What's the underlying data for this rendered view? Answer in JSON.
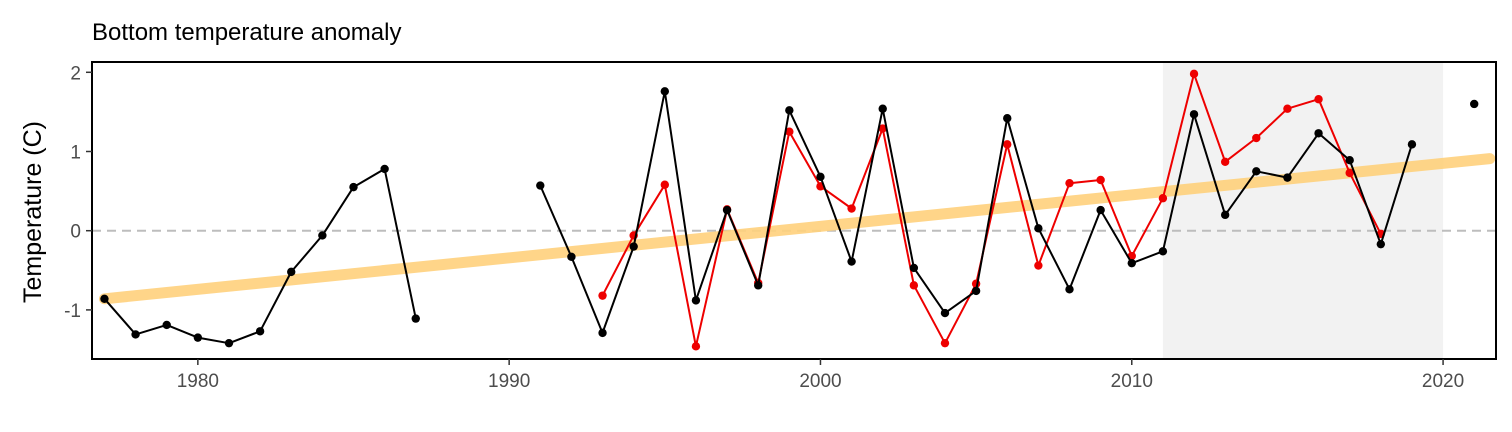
{
  "chart_data": {
    "type": "line",
    "title": "Bottom temperature anomaly",
    "xlabel": "",
    "ylabel": "Temperature (C)",
    "xlim": [
      1976.6,
      2021.7
    ],
    "ylim": [
      -1.62,
      2.13
    ],
    "x_ticks": [
      1980,
      1990,
      2000,
      2010,
      2020
    ],
    "y_ticks": [
      -1,
      0,
      1,
      2
    ],
    "y_tick_labels": [
      "-1",
      "0",
      "1",
      "2"
    ],
    "zero_line": {
      "y": 0,
      "style": "dashed",
      "color": "#bdbdbd"
    },
    "shaded_region": {
      "x": [
        2011,
        2020
      ],
      "color": "#f2f2f2"
    },
    "grid": false,
    "series": [
      {
        "color": "#000000",
        "style": "line+points",
        "points": [
          [
            1977,
            -0.86
          ],
          [
            1978,
            -1.31
          ],
          [
            1979,
            -1.19
          ],
          [
            1980,
            -1.35
          ],
          [
            1981,
            -1.42
          ],
          [
            1982,
            -1.27
          ],
          [
            1983,
            -0.52
          ],
          [
            1984,
            -0.06
          ],
          [
            1985,
            0.55
          ],
          [
            1986,
            0.78
          ],
          [
            1987,
            -1.11
          ],
          [
            1988,
            null
          ],
          [
            1989,
            null
          ],
          [
            1990,
            null
          ],
          [
            1991,
            0.57
          ],
          [
            1992,
            -0.33
          ],
          [
            1993,
            -1.29
          ],
          [
            1994,
            -0.2
          ],
          [
            1995,
            1.76
          ],
          [
            1996,
            -0.88
          ],
          [
            1997,
            0.26
          ],
          [
            1998,
            -0.69
          ],
          [
            1999,
            1.52
          ],
          [
            2000,
            0.68
          ],
          [
            2001,
            -0.39
          ],
          [
            2002,
            1.54
          ],
          [
            2003,
            -0.47
          ],
          [
            2004,
            -1.04
          ],
          [
            2005,
            -0.76
          ],
          [
            2006,
            1.42
          ],
          [
            2007,
            0.03
          ],
          [
            2008,
            -0.74
          ],
          [
            2009,
            0.26
          ],
          [
            2010,
            -0.41
          ],
          [
            2011,
            -0.26
          ],
          [
            2012,
            1.47
          ],
          [
            2013,
            0.2
          ],
          [
            2014,
            0.75
          ],
          [
            2015,
            0.67
          ],
          [
            2016,
            1.23
          ],
          [
            2017,
            0.89
          ],
          [
            2018,
            -0.17
          ],
          [
            2019,
            1.09
          ]
        ]
      },
      {
        "color": "#000000",
        "style": "points",
        "points": [
          [
            2021,
            1.6
          ]
        ]
      },
      {
        "color": "#ee0000",
        "style": "line+points",
        "points": [
          [
            1993,
            -0.82
          ],
          [
            1994,
            -0.06
          ],
          [
            1995,
            0.58
          ],
          [
            1996,
            -1.46
          ],
          [
            1997,
            0.27
          ],
          [
            1998,
            -0.66
          ],
          [
            1999,
            1.25
          ],
          [
            2000,
            0.56
          ],
          [
            2001,
            0.28
          ],
          [
            2002,
            1.29
          ],
          [
            2003,
            -0.69
          ],
          [
            2004,
            -1.42
          ],
          [
            2005,
            -0.67
          ],
          [
            2006,
            1.09
          ],
          [
            2007,
            -0.44
          ],
          [
            2008,
            0.6
          ],
          [
            2009,
            0.64
          ],
          [
            2010,
            -0.32
          ],
          [
            2011,
            0.41
          ],
          [
            2012,
            1.98
          ],
          [
            2013,
            0.87
          ],
          [
            2014,
            1.17
          ],
          [
            2015,
            1.54
          ],
          [
            2016,
            1.66
          ],
          [
            2017,
            0.73
          ],
          [
            2018,
            -0.04
          ]
        ]
      },
      {
        "color": "#ffd27f",
        "style": "trend",
        "points": [
          [
            1977,
            -0.86
          ],
          [
            2021.5,
            0.91
          ]
        ]
      }
    ]
  }
}
